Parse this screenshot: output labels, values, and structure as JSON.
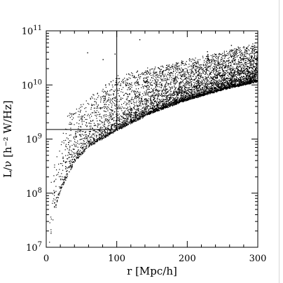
{
  "chart_data": {
    "type": "scatter",
    "title": "",
    "xlabel": "r [Mpc/h]",
    "ylabel": "L/ν [h⁻² W/Hz]",
    "xlim": [
      0,
      300
    ],
    "ylim": [
      10000000,
      100000000000
    ],
    "y_scale": "log",
    "grid": false,
    "x_ticks": [
      {
        "value": 0,
        "label": "0"
      },
      {
        "value": 100,
        "label": "100"
      },
      {
        "value": 200,
        "label": "200"
      },
      {
        "value": 300,
        "label": "300"
      }
    ],
    "y_ticks": [
      {
        "value": 10000000,
        "base": "10",
        "exp": "7"
      },
      {
        "value": 100000000,
        "base": "10",
        "exp": "8"
      },
      {
        "value": 1000000000,
        "base": "10",
        "exp": "9"
      },
      {
        "value": 10000000000,
        "base": "10",
        "exp": "10"
      },
      {
        "value": 100000000000,
        "base": "10",
        "exp": "11"
      }
    ],
    "reference_lines": [
      {
        "orientation": "vertical",
        "x": 100,
        "y_from": 1500000000,
        "y_to": 100000000000
      },
      {
        "orientation": "horizontal",
        "y": 1500000000,
        "x_from": 0,
        "x_to": 100
      }
    ],
    "point_cloud": {
      "n_points": 6000,
      "lower_envelope": [
        {
          "x": 3,
          "y": 10000000
        },
        {
          "x": 10,
          "y": 40000000
        },
        {
          "x": 20,
          "y": 120000000
        },
        {
          "x": 40,
          "y": 400000000
        },
        {
          "x": 60,
          "y": 750000000
        },
        {
          "x": 100,
          "y": 1500000000
        },
        {
          "x": 150,
          "y": 3200000000
        },
        {
          "x": 200,
          "y": 5500000000
        },
        {
          "x": 250,
          "y": 8500000000
        },
        {
          "x": 300,
          "y": 12000000000
        }
      ],
      "upper_extent": [
        {
          "x": 5,
          "y": 200000000
        },
        {
          "x": 30,
          "y": 3000000000
        },
        {
          "x": 100,
          "y": 15000000000
        },
        {
          "x": 200,
          "y": 30000000000
        },
        {
          "x": 300,
          "y": 60000000000
        }
      ],
      "density": "highest near lower envelope at small r"
    },
    "outliers": [
      {
        "x": 58,
        "y": 40000000000
      },
      {
        "x": 97,
        "y": 38000000000
      },
      {
        "x": 132,
        "y": 70000000000
      },
      {
        "x": 80,
        "y": 30000000000
      },
      {
        "x": 228,
        "y": 42000000000
      },
      {
        "x": 262,
        "y": 55000000000
      },
      {
        "x": 295,
        "y": 46000000000
      }
    ]
  }
}
